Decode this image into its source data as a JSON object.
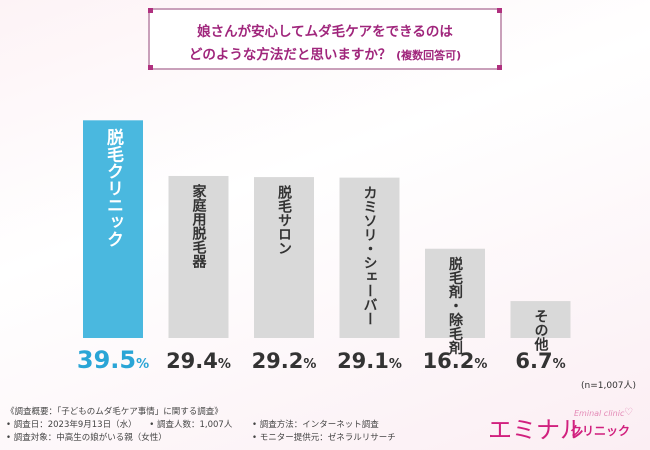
{
  "question": {
    "line1": "娘さんが安心してムダ毛ケアをできるのは",
    "line2": "どのような方法だと思いますか？",
    "note": "(複数回答可)"
  },
  "sample_size": "(n=1,007人)",
  "colors": {
    "highlight": "#4ab8df",
    "bar": "#d9d9d9",
    "highlight_text": "#2aa5d6",
    "text": "#333333",
    "brand": "#d1207e"
  },
  "chart_data": {
    "type": "bar",
    "title": "",
    "xlabel": "",
    "ylabel": "",
    "categories": [
      "脱毛クリニック",
      "家庭用脱毛器",
      "脱毛サロン",
      "カミソリ・シェーバー",
      "脱毛剤・除毛剤",
      "その他"
    ],
    "values": [
      39.5,
      29.4,
      29.2,
      29.1,
      16.2,
      6.7
    ],
    "value_labels": [
      "39.5%",
      "29.4%",
      "29.2%",
      "29.1%",
      "16.2%",
      "6.7%"
    ],
    "highlight_index": 0,
    "ylim": [
      0,
      45
    ],
    "grid": false
  },
  "footer": {
    "heading": "《調査概要：「子どものムダ毛ケア事情」に関する調査》",
    "date": "• 調査日：2023年9月13日（水）",
    "respondents": "• 調査人数：1,007人",
    "method": "• 調査方法：インターネット調査",
    "target": "• 調査対象：中高生の娘がいる親（女性）",
    "provider": "• モニター提供元：ゼネラルリサーチ"
  },
  "brand": {
    "name": "エミナル",
    "sub": "クリニック",
    "en": "Eminal clinic"
  }
}
